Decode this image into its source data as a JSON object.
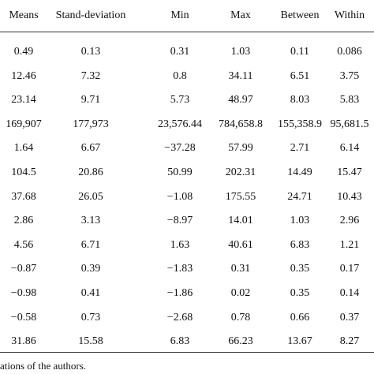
{
  "table": {
    "header": [
      "Means",
      "Stand-deviation",
      "Min",
      "Max",
      "Between",
      "Within"
    ],
    "rows": [
      [
        "0.49",
        "0.13",
        "0.31",
        "1.03",
        "0.11",
        "0.086"
      ],
      [
        "12.46",
        "7.32",
        "0.8",
        "34.11",
        "6.51",
        "3.75"
      ],
      [
        "23.14",
        "9.71",
        "5.73",
        "48.97",
        "8.03",
        "5.83"
      ],
      [
        "169,907",
        "177,973",
        "23,576.44",
        "784,658.8",
        "155,358.9",
        "95,681.5"
      ],
      [
        "1.64",
        "6.67",
        "−37.28",
        "57.99",
        "2.71",
        "6.14"
      ],
      [
        "104.5",
        "20.86",
        "50.99",
        "202.31",
        "14.49",
        "15.47"
      ],
      [
        "37.68",
        "26.05",
        "−1.08",
        "175.55",
        "24.71",
        "10.43"
      ],
      [
        "2.86",
        "3.13",
        "−8.97",
        "14.01",
        "1.03",
        "2.96"
      ],
      [
        "4.56",
        "6.71",
        "1.63",
        "40.61",
        "6.83",
        "1.21"
      ],
      [
        "−0.87",
        "0.39",
        "−1.83",
        "0.31",
        "0.35",
        "0.17"
      ],
      [
        "−0.98",
        "0.41",
        "−1.86",
        "0.02",
        "0.35",
        "0.14"
      ],
      [
        "−0.58",
        "0.73",
        "−2.68",
        "0.78",
        "0.66",
        "0.37"
      ],
      [
        "31.86",
        "15.58",
        "6.83",
        "66.23",
        "13.67",
        "8.27"
      ]
    ]
  },
  "footnote": "ations of the authors."
}
